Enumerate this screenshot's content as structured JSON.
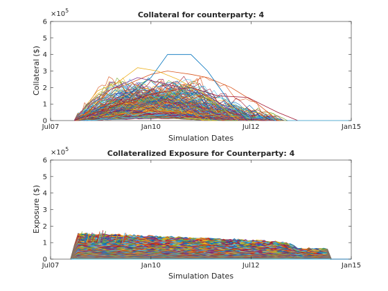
{
  "chart_data": [
    {
      "type": "line",
      "title": "Collateral for counterparty: 4",
      "xlabel": "Simulation Dates",
      "ylabel": "Collateral ($)",
      "y_multiplier_label": "×10",
      "y_multiplier_exponent": "5",
      "x_ticks": [
        "Jul07",
        "Jan10",
        "Jul12",
        "Jan15"
      ],
      "x_tick_dates": [
        "2007-07-01",
        "2010-01-01",
        "2012-07-01",
        "2015-01-01"
      ],
      "x_range": [
        "2007-07-01",
        "2015-01-01"
      ],
      "y_ticks": [
        "0",
        "1",
        "2",
        "3",
        "4",
        "5",
        "6"
      ],
      "ylim": [
        0,
        600000
      ],
      "grid": false,
      "legend": "none",
      "series_count": "many simulated paths",
      "highlighted_paths": [
        {
          "color": "#D95319",
          "x": [
            "2008-02-01",
            "2008-06-01",
            "2009-01-01",
            "2009-06-01",
            "2010-01-01",
            "2010-06-01",
            "2011-01-01",
            "2011-06-01",
            "2012-01-01",
            "2012-09-01",
            "2013-03-01"
          ],
          "y": [
            0,
            50000,
            190000,
            220000,
            280000,
            300000,
            280000,
            260000,
            200000,
            100000,
            0
          ]
        },
        {
          "color": "#0072BD",
          "x": [
            "2008-02-01",
            "2009-06-01",
            "2010-01-01",
            "2010-06-01",
            "2011-01-01",
            "2011-06-01",
            "2012-01-01",
            "2012-06-01"
          ],
          "y": [
            0,
            150000,
            260000,
            400000,
            400000,
            300000,
            100000,
            0
          ]
        },
        {
          "color": "#EDB120",
          "x": [
            "2008-02-01",
            "2008-09-01",
            "2009-03-01",
            "2009-09-01",
            "2010-03-01",
            "2010-09-01",
            "2011-06-01",
            "2012-03-01"
          ],
          "y": [
            0,
            180000,
            230000,
            320000,
            300000,
            250000,
            150000,
            0
          ]
        },
        {
          "color": "#A2142F",
          "x": [
            "2008-02-01",
            "2009-01-01",
            "2010-01-01",
            "2011-01-01",
            "2011-09-01",
            "2012-06-01",
            "2013-03-01",
            "2013-09-01"
          ],
          "y": [
            0,
            80000,
            160000,
            200000,
            150000,
            140000,
            50000,
            0
          ]
        },
        {
          "color": "#7E2F8E",
          "x": [
            "2008-02-01",
            "2008-06-01",
            "2009-01-01",
            "2009-09-01",
            "2010-06-01",
            "2011-06-01",
            "2012-06-01"
          ],
          "y": [
            0,
            100000,
            190000,
            260000,
            220000,
            150000,
            0
          ]
        }
      ]
    },
    {
      "type": "line",
      "title": "Collateralized Exposure for Counterparty: 4",
      "xlabel": "Simulation Dates",
      "ylabel": "Exposure ($)",
      "y_multiplier_label": "×10",
      "y_multiplier_exponent": "5",
      "x_ticks": [
        "Jul07",
        "Jan10",
        "Jul12",
        "Jan15"
      ],
      "x_tick_dates": [
        "2007-07-01",
        "2010-01-01",
        "2012-07-01",
        "2015-01-01"
      ],
      "x_range": [
        "2007-07-01",
        "2015-01-01"
      ],
      "y_ticks": [
        "0",
        "1",
        "2",
        "3",
        "4",
        "5",
        "6"
      ],
      "ylim": [
        0,
        600000
      ],
      "grid": false,
      "legend": "none",
      "series_count": "many simulated paths",
      "envelope": {
        "x": [
          "2008-01-01",
          "2008-03-01",
          "2009-01-01",
          "2010-01-01",
          "2011-01-01",
          "2012-01-01",
          "2013-01-01",
          "2013-06-01",
          "2013-09-01",
          "2014-06-01",
          "2014-07-01"
        ],
        "y": [
          0,
          150000,
          145000,
          135000,
          125000,
          115000,
          105000,
          95000,
          60000,
          60000,
          0
        ]
      }
    }
  ]
}
